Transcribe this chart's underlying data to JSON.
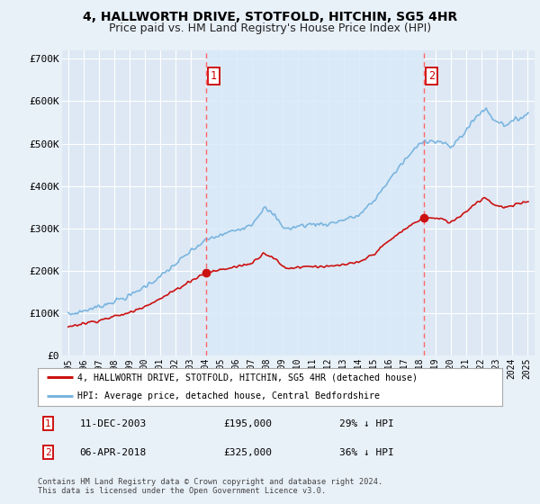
{
  "title": "4, HALLWORTH DRIVE, STOTFOLD, HITCHIN, SG5 4HR",
  "subtitle": "Price paid vs. HM Land Registry's House Price Index (HPI)",
  "legend_line1": "4, HALLWORTH DRIVE, STOTFOLD, HITCHIN, SG5 4HR (detached house)",
  "legend_line2": "HPI: Average price, detached house, Central Bedfordshire",
  "transaction1_date": "11-DEC-2003",
  "transaction1_price": "£195,000",
  "transaction1_hpi": "29% ↓ HPI",
  "transaction2_date": "06-APR-2018",
  "transaction2_price": "£325,000",
  "transaction2_hpi": "36% ↓ HPI",
  "footer": "Contains HM Land Registry data © Crown copyright and database right 2024.\nThis data is licensed under the Open Government Licence v3.0.",
  "vline1_x": 2004.0,
  "vline2_x": 2018.27,
  "marker1_x": 2004.0,
  "marker1_y": 195000,
  "marker2_x": 2018.27,
  "marker2_y": 325000,
  "ylim": [
    0,
    720000
  ],
  "xlim_left": 1994.6,
  "xlim_right": 2025.5,
  "hpi_color": "#7ab5e0",
  "price_color": "#cc1111",
  "vline_color": "#ff6666",
  "background_color": "#e8f0f8",
  "plot_bg": "#dde8f4",
  "shade_color": "#daeaf8",
  "grid_color": "#ffffff",
  "title_fontsize": 10,
  "subtitle_fontsize": 9,
  "ytick_labels": [
    "£0",
    "£100K",
    "£200K",
    "£300K",
    "£400K",
    "£500K",
    "£600K",
    "£700K"
  ],
  "ytick_values": [
    0,
    100000,
    200000,
    300000,
    400000,
    500000,
    600000,
    700000
  ],
  "xtick_years": [
    1995,
    1996,
    1997,
    1998,
    1999,
    2000,
    2001,
    2002,
    2003,
    2004,
    2005,
    2006,
    2007,
    2008,
    2009,
    2010,
    2011,
    2012,
    2013,
    2014,
    2015,
    2016,
    2017,
    2018,
    2019,
    2020,
    2021,
    2022,
    2023,
    2024,
    2025
  ]
}
